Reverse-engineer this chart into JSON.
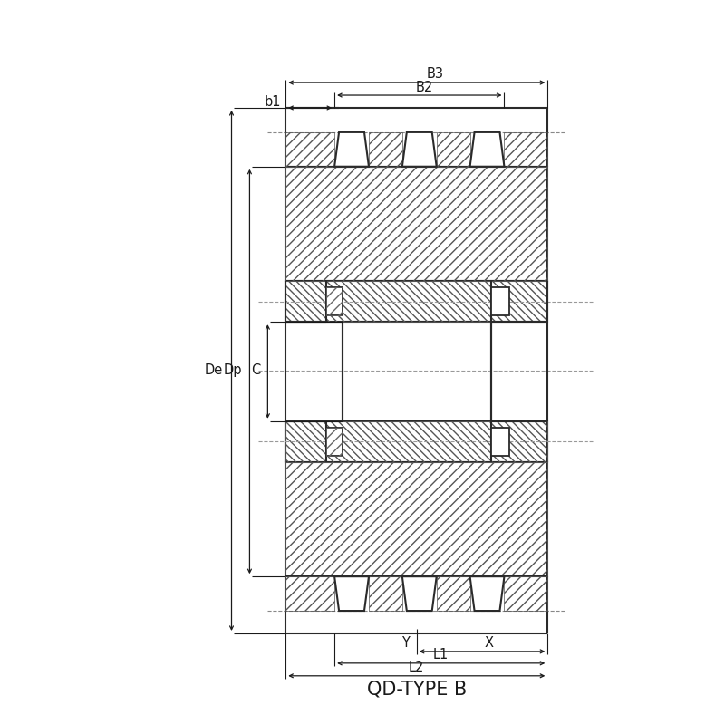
{
  "title": "QD-TYPE B",
  "title_fontsize": 15,
  "bg": "#ffffff",
  "lc": "#2a2a2a",
  "dc": "#1a1a1a",
  "fig_w": 8.0,
  "fig_h": 8.0,
  "labels": {
    "B3": "B3",
    "B2": "B2",
    "b1": "b1",
    "C": "C",
    "De": "De",
    "Dp": "Dp",
    "X": "X",
    "Y": "Y",
    "L1": "L1",
    "L2": "L2"
  }
}
